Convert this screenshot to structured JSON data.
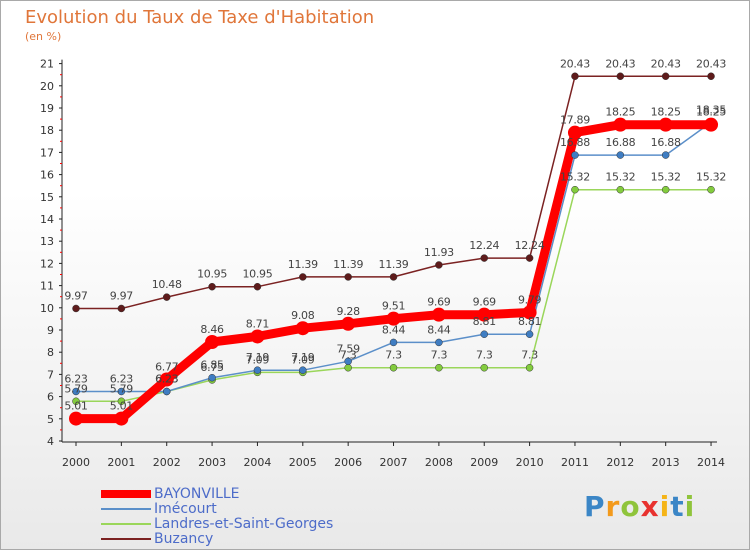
{
  "title": "Evolution du Taux de Taxe d'Habitation",
  "subtitle": "(en %)",
  "chart_data": {
    "type": "line",
    "title": "Evolution du Taux de Taxe d'Habitation",
    "ylabel": "(en %)",
    "xlabel": "",
    "categories": [
      "2000",
      "2001",
      "2002",
      "2003",
      "2004",
      "2005",
      "2006",
      "2007",
      "2008",
      "2009",
      "2010",
      "2011",
      "2012",
      "2013",
      "2014"
    ],
    "ylim": [
      4,
      21
    ],
    "yticks": [
      4,
      5,
      6,
      7,
      8,
      9,
      10,
      11,
      12,
      13,
      14,
      15,
      16,
      17,
      18,
      19,
      20,
      21
    ],
    "grid": false,
    "legend_position": "bottom-left",
    "series": [
      {
        "name": "Buzancy",
        "color": "#7b2222",
        "point_color": "#5e1b1b",
        "values": [
          9.97,
          9.97,
          10.48,
          10.95,
          10.95,
          11.39,
          11.39,
          11.39,
          11.93,
          12.24,
          12.24,
          20.43,
          20.43,
          20.43,
          20.43
        ],
        "labels": [
          "9.97",
          "9.97",
          "10.48",
          "10.95",
          "10.95",
          "11.39",
          "11.39",
          "11.39",
          "11.93",
          "12.24",
          "12.24",
          "20.43",
          "20.43",
          "20.43",
          "20.43"
        ]
      },
      {
        "name": "Landres-et-Saint-Georges",
        "color": "#9ad65a",
        "point_color": "#83cc3e",
        "values": [
          5.79,
          5.79,
          6.23,
          6.75,
          7.09,
          7.09,
          7.3,
          7.3,
          7.3,
          7.3,
          7.3,
          15.32,
          15.32,
          15.32,
          15.32
        ],
        "labels": [
          "5.79",
          "5.79",
          "6.23",
          "6.75",
          "7.09",
          "7.09",
          "7.3",
          "7.3",
          "7.3",
          "7.3",
          "7.3",
          "15.32",
          "15.32",
          "15.32",
          "15.32"
        ]
      },
      {
        "name": "Imécourt",
        "color": "#5b8fc9",
        "point_color": "#3f7dc2",
        "values": [
          6.23,
          6.23,
          6.23,
          6.85,
          7.19,
          7.19,
          7.59,
          8.44,
          8.44,
          8.81,
          8.81,
          16.88,
          16.88,
          16.88,
          18.35
        ],
        "labels": [
          "6.23",
          "6.23",
          "6.23",
          "6.85",
          "7.19",
          "7.19",
          "7.59",
          "8.44",
          "8.44",
          "8.81",
          "8.81",
          "16.88",
          "16.88",
          "16.88",
          "18.35"
        ]
      },
      {
        "name": "BAYONVILLE",
        "color": "#ff0000",
        "point_color": "#ff0000",
        "values": [
          5.01,
          5.01,
          6.77,
          8.46,
          8.71,
          9.08,
          9.28,
          9.51,
          9.69,
          9.69,
          9.79,
          17.89,
          18.25,
          18.25,
          18.25
        ],
        "labels": [
          "5.01",
          "5.01",
          "6.77",
          "8.46",
          "8.71",
          "9.08",
          "9.28",
          "9.51",
          "9.69",
          "9.69",
          "9.79",
          "17.89",
          "18.25",
          "18.25",
          "18.25"
        ]
      }
    ]
  },
  "legend": [
    {
      "label": "BAYONVILLE",
      "color": "#ff0000"
    },
    {
      "label": "Imécourt",
      "color": "#5b8fc9"
    },
    {
      "label": "Landres-et-Saint-Georges",
      "color": "#9ad65a"
    },
    {
      "label": "Buzancy",
      "color": "#7b2222"
    }
  ],
  "logo": {
    "text": "Proxiti",
    "letters": [
      "P",
      "r",
      "o",
      "x",
      "i",
      "t",
      "i"
    ],
    "colors": [
      "#3b86c6",
      "#f39a1c",
      "#8fc43b",
      "#e8322f",
      "#f5b417",
      "#3b86c6",
      "#8fc43b"
    ]
  }
}
